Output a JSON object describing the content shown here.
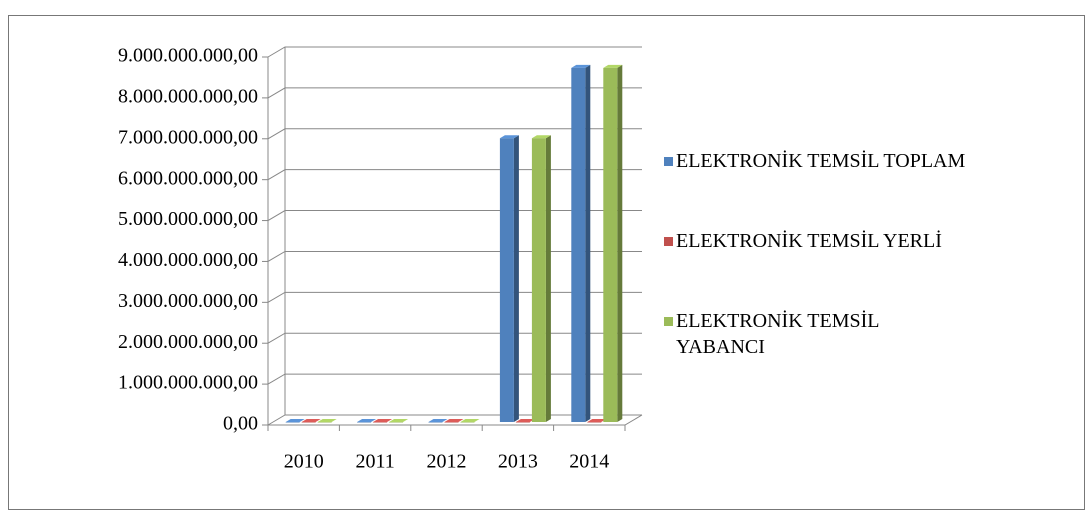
{
  "chart_data": {
    "type": "bar3d",
    "categories": [
      "2010",
      "2011",
      "2012",
      "2013",
      "2014"
    ],
    "series": [
      {
        "name": "ELEKTRONİK TEMSİL TOPLAM",
        "color": "#4f81bd",
        "values": [
          0,
          0,
          0,
          6940000000,
          8660000000
        ]
      },
      {
        "name": "ELEKTRONİK TEMSİL YERLİ",
        "color": "#c0504d",
        "values": [
          0,
          0,
          0,
          0,
          0
        ]
      },
      {
        "name": "ELEKTRONİK TEMSİL YABANCI",
        "color": "#9bbb59",
        "values": [
          0,
          0,
          0,
          6940000000,
          8660000000
        ]
      }
    ],
    "ylim": [
      0,
      9000000000
    ],
    "yticks": [
      {
        "value": 0,
        "label": "0,00"
      },
      {
        "value": 1000000000,
        "label": "1.000.000.000,00"
      },
      {
        "value": 2000000000,
        "label": "2.000.000.000,00"
      },
      {
        "value": 3000000000,
        "label": "3.000.000.000,00"
      },
      {
        "value": 4000000000,
        "label": "4.000.000.000,00"
      },
      {
        "value": 5000000000,
        "label": "5.000.000.000,00"
      },
      {
        "value": 6000000000,
        "label": "6.000.000.000,00"
      },
      {
        "value": 7000000000,
        "label": "7.000.000.000,00"
      },
      {
        "value": 8000000000,
        "label": "8.000.000.000,00"
      },
      {
        "value": 9000000000,
        "label": "9.000.000.000,00"
      }
    ],
    "grid": true,
    "legend": "right"
  }
}
